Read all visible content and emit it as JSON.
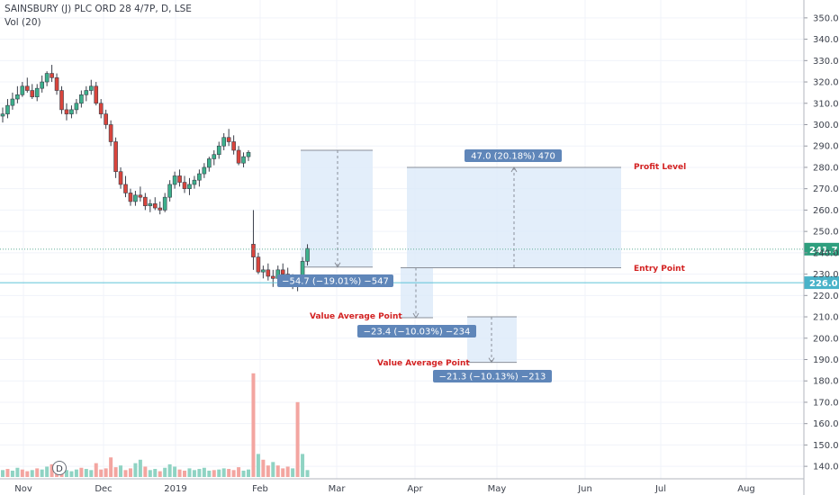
{
  "chart_data": {
    "type": "candlestick",
    "title": "SAINSBURY (J) PLC ORD 28 4/7P, D, LSE",
    "subtitle": "Vol (20)",
    "ylim": [
      135,
      355
    ],
    "yticks": [
      140,
      150,
      160,
      170,
      180,
      190,
      200,
      210,
      220,
      230,
      240,
      250,
      260,
      270,
      280,
      290,
      300,
      310,
      320,
      330,
      340,
      350
    ],
    "x_labels": [
      "Nov",
      "Dec",
      "2019",
      "Feb",
      "Mar",
      "Apr",
      "May",
      "Jun",
      "Jul",
      "Aug"
    ],
    "dividend_marker": "D",
    "last_price": 241.7,
    "horizontal_level": 226.0,
    "candles": [
      [
        304,
        308,
        301,
        305
      ],
      [
        305,
        312,
        303,
        309
      ],
      [
        309,
        315,
        307,
        312
      ],
      [
        312,
        318,
        310,
        314
      ],
      [
        314,
        320,
        313,
        318
      ],
      [
        318,
        322,
        315,
        316
      ],
      [
        316,
        319,
        312,
        313
      ],
      [
        313,
        319,
        311,
        317
      ],
      [
        317,
        323,
        315,
        320
      ],
      [
        320,
        325,
        318,
        324
      ],
      [
        324,
        328,
        320,
        322
      ],
      [
        322,
        324,
        314,
        316
      ],
      [
        316,
        318,
        305,
        307
      ],
      [
        307,
        310,
        302,
        305
      ],
      [
        305,
        309,
        303,
        307
      ],
      [
        307,
        312,
        305,
        310
      ],
      [
        310,
        316,
        308,
        314
      ],
      [
        314,
        318,
        311,
        316
      ],
      [
        316,
        321,
        314,
        318
      ],
      [
        318,
        320,
        309,
        310
      ],
      [
        310,
        312,
        303,
        305
      ],
      [
        305,
        307,
        298,
        300
      ],
      [
        300,
        302,
        290,
        292
      ],
      [
        292,
        294,
        275,
        278
      ],
      [
        278,
        280,
        270,
        272
      ],
      [
        272,
        276,
        266,
        268
      ],
      [
        268,
        270,
        262,
        264
      ],
      [
        264,
        269,
        262,
        267
      ],
      [
        267,
        271,
        264,
        266
      ],
      [
        266,
        268,
        260,
        262
      ],
      [
        262,
        265,
        259,
        263
      ],
      [
        263,
        266,
        260,
        261
      ],
      [
        261,
        264,
        258,
        260
      ],
      [
        260,
        268,
        259,
        266
      ],
      [
        266,
        274,
        264,
        272
      ],
      [
        272,
        278,
        270,
        276
      ],
      [
        276,
        279,
        271,
        273
      ],
      [
        273,
        276,
        268,
        270
      ],
      [
        270,
        275,
        267,
        272
      ],
      [
        272,
        276,
        270,
        274
      ],
      [
        274,
        279,
        271,
        277
      ],
      [
        277,
        282,
        275,
        280
      ],
      [
        280,
        285,
        278,
        284
      ],
      [
        284,
        288,
        281,
        286
      ],
      [
        286,
        292,
        284,
        290
      ],
      [
        290,
        296,
        288,
        294
      ],
      [
        294,
        298,
        290,
        292
      ],
      [
        292,
        295,
        286,
        288
      ],
      [
        288,
        290,
        281,
        282
      ],
      [
        282,
        287,
        280,
        285
      ],
      [
        285,
        288,
        283,
        287
      ],
      [
        244,
        260,
        232,
        238
      ],
      [
        238,
        240,
        230,
        231
      ],
      [
        231,
        234,
        228,
        232
      ],
      [
        232,
        235,
        227,
        229
      ],
      [
        229,
        232,
        224,
        228
      ],
      [
        228,
        234,
        226,
        232
      ],
      [
        232,
        235,
        228,
        230
      ],
      [
        230,
        233,
        226,
        227
      ],
      [
        227,
        230,
        223,
        225
      ],
      [
        225,
        229,
        222,
        227
      ],
      [
        227,
        238,
        226,
        236
      ],
      [
        236,
        244,
        234,
        242
      ]
    ],
    "volume": [
      [
        12,
        "up"
      ],
      [
        14,
        "dn"
      ],
      [
        11,
        "up"
      ],
      [
        16,
        "up"
      ],
      [
        13,
        "dn"
      ],
      [
        10,
        "dn"
      ],
      [
        12,
        "up"
      ],
      [
        15,
        "dn"
      ],
      [
        13,
        "up"
      ],
      [
        18,
        "up"
      ],
      [
        22,
        "dn"
      ],
      [
        11,
        "dn"
      ],
      [
        14,
        "dn"
      ],
      [
        12,
        "up"
      ],
      [
        10,
        "up"
      ],
      [
        13,
        "up"
      ],
      [
        16,
        "dn"
      ],
      [
        14,
        "up"
      ],
      [
        12,
        "up"
      ],
      [
        24,
        "dn"
      ],
      [
        13,
        "dn"
      ],
      [
        15,
        "dn"
      ],
      [
        34,
        "dn"
      ],
      [
        17,
        "dn"
      ],
      [
        20,
        "up"
      ],
      [
        12,
        "dn"
      ],
      [
        15,
        "dn"
      ],
      [
        24,
        "up"
      ],
      [
        30,
        "up"
      ],
      [
        18,
        "dn"
      ],
      [
        12,
        "up"
      ],
      [
        14,
        "up"
      ],
      [
        10,
        "dn"
      ],
      [
        16,
        "up"
      ],
      [
        22,
        "up"
      ],
      [
        18,
        "up"
      ],
      [
        13,
        "dn"
      ],
      [
        11,
        "dn"
      ],
      [
        15,
        "up"
      ],
      [
        12,
        "up"
      ],
      [
        14,
        "up"
      ],
      [
        16,
        "up"
      ],
      [
        11,
        "up"
      ],
      [
        12,
        "dn"
      ],
      [
        13,
        "up"
      ],
      [
        15,
        "up"
      ],
      [
        14,
        "dn"
      ],
      [
        12,
        "dn"
      ],
      [
        17,
        "dn"
      ],
      [
        11,
        "up"
      ],
      [
        13,
        "up"
      ],
      [
        180,
        "dn"
      ],
      [
        40,
        "up"
      ],
      [
        30,
        "dn"
      ],
      [
        20,
        "dn"
      ],
      [
        26,
        "up"
      ],
      [
        20,
        "dn"
      ],
      [
        15,
        "dn"
      ],
      [
        18,
        "dn"
      ],
      [
        15,
        "up"
      ],
      [
        130,
        "dn"
      ],
      [
        40,
        "up"
      ],
      [
        12,
        "up"
      ]
    ],
    "measures": [
      {
        "text": "−54.7 (−19.01%) −547",
        "top": 288,
        "bottom": 233.3,
        "direction": "down"
      },
      {
        "text": "47.0 (20.18%) 470",
        "top": 280,
        "bottom": 233,
        "direction": "up"
      },
      {
        "text": "−23.4 (−10.03%) −234",
        "top": 233,
        "bottom": 209.6,
        "direction": "down"
      },
      {
        "text": "−21.3 (−10.13%) −213",
        "top": 210,
        "bottom": 188.7,
        "direction": "down"
      }
    ],
    "annotations": [
      {
        "text": "Profit Level",
        "price": 280
      },
      {
        "text": "Entry Point",
        "price": 233
      },
      {
        "text": "Value Average Point",
        "price": 210
      },
      {
        "text": "Value Average Point",
        "price": 188.5
      }
    ],
    "colors": {
      "up": "#3cb08c",
      "down": "#d9443c",
      "vol_up": "#8fd3c3",
      "vol_down": "#f3a5a0",
      "measure_fill": "#dceaf9",
      "measure_label": "#5f86b9",
      "hline": "#5ec3d8"
    }
  }
}
